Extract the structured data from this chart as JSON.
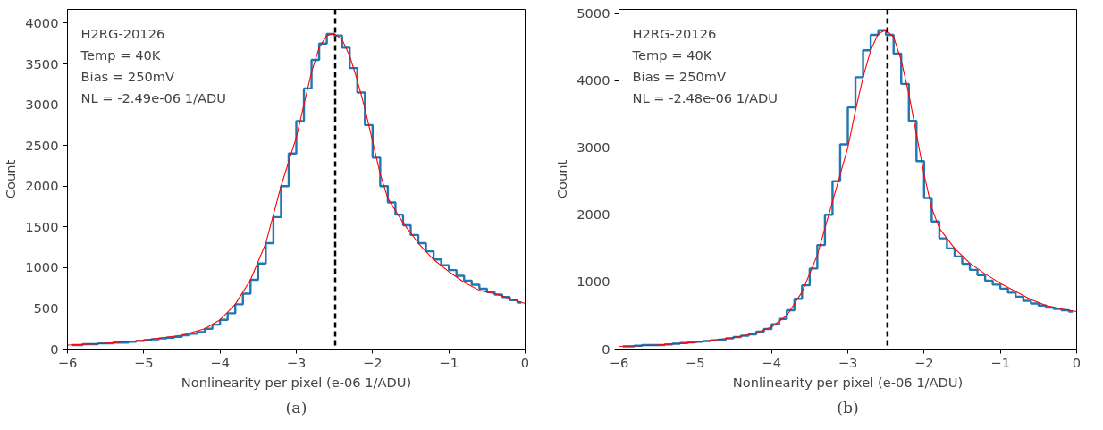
{
  "chart_data": [
    {
      "type": "step",
      "xlabel": "Nonlinearity per pixel (e-06 1/ADU)",
      "ylabel": "Count",
      "annotations": [
        "H2RG-20126",
        "Temp = 40K",
        "Bias = 250mV",
        "NL = -2.49e-06 1/ADU",
        "(a)"
      ],
      "series": [
        {
          "color": "#1f77b4",
          "x": [
            -5.95,
            -5.85,
            -5.75,
            -5.65,
            -5.55,
            -5.45,
            -5.35,
            -5.25,
            -5.15,
            -5.05,
            -4.95,
            -4.85,
            -4.75,
            -4.65,
            -4.55,
            -4.45,
            -4.35,
            -4.25,
            -4.15,
            -4.05,
            -3.95,
            -3.85,
            -3.75,
            -3.65,
            -3.55,
            -3.45,
            -3.35,
            -3.25,
            -3.15,
            -3.05,
            -2.95,
            -2.85,
            -2.75,
            -2.65,
            -2.55,
            -2.45,
            -2.35,
            -2.25,
            -2.15,
            -2.05,
            -1.95,
            -1.85,
            -1.75,
            -1.65,
            -1.55,
            -1.45,
            -1.35,
            -1.25,
            -1.15,
            -1.05,
            -0.95,
            -0.85,
            -0.75,
            -0.65,
            -0.55,
            -0.45,
            -0.35,
            -0.25,
            -0.15,
            -0.05
          ],
          "values": [
            50,
            50,
            60,
            60,
            70,
            70,
            80,
            80,
            90,
            100,
            110,
            120,
            130,
            140,
            150,
            170,
            190,
            210,
            250,
            300,
            360,
            440,
            550,
            680,
            850,
            1050,
            1300,
            1620,
            2000,
            2400,
            2800,
            3200,
            3550,
            3750,
            3870,
            3850,
            3700,
            3450,
            3150,
            2750,
            2350,
            2000,
            1800,
            1650,
            1520,
            1400,
            1300,
            1200,
            1100,
            1030,
            970,
            900,
            840,
            790,
            740,
            700,
            670,
            640,
            600,
            570
          ]
        },
        {
          "type": "line",
          "color": "#ff0000",
          "x": [
            -6.0,
            -5.5,
            -5.0,
            -4.5,
            -4.2,
            -4.0,
            -3.8,
            -3.6,
            -3.4,
            -3.2,
            -3.0,
            -2.9,
            -2.8,
            -2.7,
            -2.6,
            -2.5,
            -2.4,
            -2.3,
            -2.2,
            -2.1,
            -2.0,
            -1.9,
            -1.8,
            -1.6,
            -1.4,
            -1.2,
            -1.0,
            -0.8,
            -0.6,
            -0.4,
            -0.2,
            0.0
          ],
          "values": [
            50,
            70,
            110,
            170,
            250,
            360,
            550,
            850,
            1300,
            2000,
            2600,
            3000,
            3400,
            3700,
            3850,
            3870,
            3800,
            3600,
            3300,
            2950,
            2550,
            2150,
            1850,
            1550,
            1300,
            1100,
            950,
            820,
            720,
            680,
            620,
            560
          ]
        }
      ],
      "ref_lines": [
        {
          "axis": "x",
          "value": -2.49,
          "color": "#000000",
          "line_style": "dashed"
        }
      ],
      "xlim": [
        -6,
        0
      ],
      "xticks": [
        {
          "value": -6,
          "label": "−6"
        },
        {
          "value": -5,
          "label": "−5"
        },
        {
          "value": -4,
          "label": "−4"
        },
        {
          "value": -3,
          "label": "−3"
        },
        {
          "value": -2,
          "label": "−2"
        },
        {
          "value": -1,
          "label": "−1"
        },
        0
      ],
      "ylim": [
        0,
        4170
      ],
      "yticks": [
        0,
        500,
        1000,
        1500,
        2000,
        2500,
        3000,
        3500,
        4000
      ]
    },
    {
      "type": "step",
      "xlabel": "Nonlinearity per pixel (e-06 1/ADU)",
      "ylabel": "Count",
      "annotations": [
        "H2RG-20126",
        "Temp = 40K",
        "Bias = 250mV",
        "NL = -2.48e-06 1/ADU",
        "(b)"
      ],
      "series": [
        {
          "color": "#1f77b4",
          "x": [
            -5.95,
            -5.85,
            -5.75,
            -5.65,
            -5.55,
            -5.45,
            -5.35,
            -5.25,
            -5.15,
            -5.05,
            -4.95,
            -4.85,
            -4.75,
            -4.65,
            -4.55,
            -4.45,
            -4.35,
            -4.25,
            -4.15,
            -4.05,
            -3.95,
            -3.85,
            -3.75,
            -3.65,
            -3.55,
            -3.45,
            -3.35,
            -3.25,
            -3.15,
            -3.05,
            -2.95,
            -2.85,
            -2.75,
            -2.65,
            -2.55,
            -2.45,
            -2.35,
            -2.25,
            -2.15,
            -2.05,
            -1.95,
            -1.85,
            -1.75,
            -1.65,
            -1.55,
            -1.45,
            -1.35,
            -1.25,
            -1.15,
            -1.05,
            -0.95,
            -0.85,
            -0.75,
            -0.65,
            -0.55,
            -0.45,
            -0.35,
            -0.25,
            -0.15,
            -0.05
          ],
          "values": [
            40,
            40,
            50,
            60,
            60,
            60,
            70,
            80,
            90,
            100,
            110,
            120,
            130,
            140,
            160,
            180,
            200,
            220,
            260,
            300,
            370,
            450,
            580,
            750,
            950,
            1200,
            1550,
            2000,
            2500,
            3050,
            3600,
            4050,
            4450,
            4680,
            4750,
            4680,
            4400,
            3950,
            3400,
            2800,
            2250,
            1900,
            1650,
            1500,
            1380,
            1270,
            1180,
            1100,
            1020,
            960,
            900,
            840,
            780,
            720,
            680,
            650,
            620,
            600,
            580,
            560
          ]
        },
        {
          "type": "line",
          "color": "#ff0000",
          "x": [
            -6.0,
            -5.5,
            -5.0,
            -4.5,
            -4.2,
            -4.0,
            -3.8,
            -3.6,
            -3.4,
            -3.2,
            -3.0,
            -2.9,
            -2.8,
            -2.7,
            -2.6,
            -2.5,
            -2.4,
            -2.3,
            -2.2,
            -2.1,
            -2.0,
            -1.9,
            -1.8,
            -1.6,
            -1.4,
            -1.2,
            -1.0,
            -0.8,
            -0.6,
            -0.4,
            -0.2,
            0.0
          ],
          "values": [
            40,
            60,
            100,
            170,
            240,
            330,
            500,
            850,
            1400,
            2200,
            3000,
            3550,
            4050,
            4450,
            4700,
            4750,
            4650,
            4300,
            3800,
            3200,
            2600,
            2100,
            1800,
            1500,
            1280,
            1120,
            980,
            860,
            740,
            650,
            600,
            560
          ]
        }
      ],
      "ref_lines": [
        {
          "axis": "x",
          "value": -2.48,
          "color": "#000000",
          "line_style": "dashed"
        }
      ],
      "xlim": [
        -6,
        0
      ],
      "xticks": [
        {
          "value": -6,
          "label": "−6"
        },
        {
          "value": -5,
          "label": "−5"
        },
        {
          "value": -4,
          "label": "−4"
        },
        {
          "value": -3,
          "label": "−3"
        },
        {
          "value": -2,
          "label": "−2"
        },
        {
          "value": -1,
          "label": "−1"
        },
        0
      ],
      "ylim": [
        0,
        5060
      ],
      "yticks": [
        0,
        1000,
        2000,
        3000,
        4000,
        5000
      ]
    }
  ]
}
